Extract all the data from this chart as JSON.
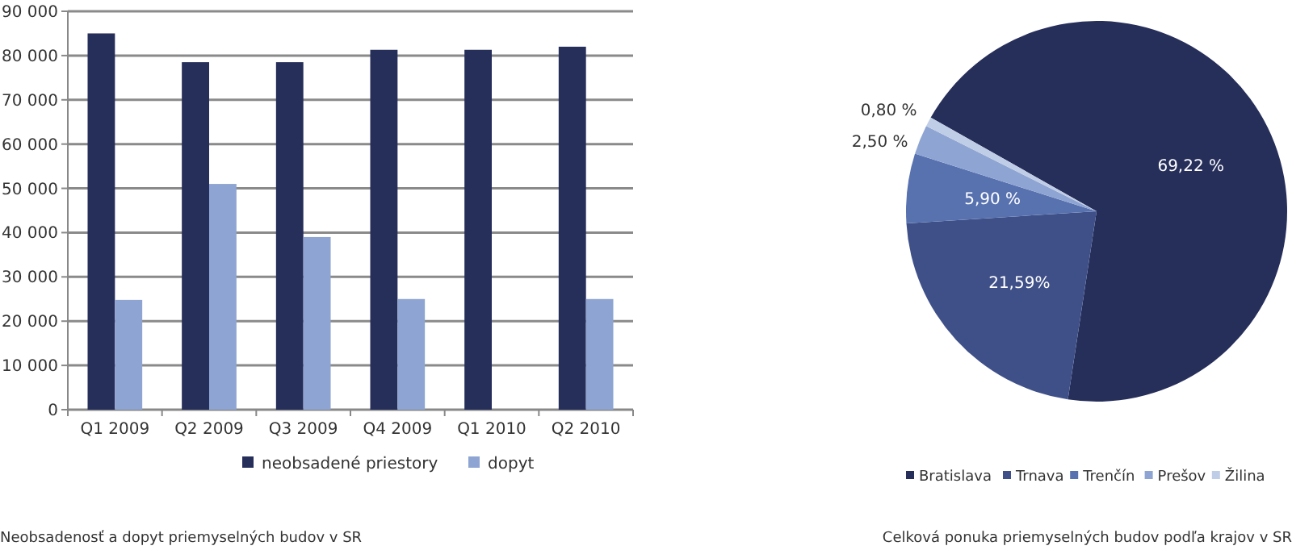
{
  "chart_data": [
    {
      "type": "bar",
      "categories": [
        "Q1 2009",
        "Q2 2009",
        "Q3 2009",
        "Q4 2009",
        "Q1 2010",
        "Q2 2010"
      ],
      "series": [
        {
          "name": "neobsadené priestory",
          "color": "#262e5a",
          "values": [
            85000,
            78500,
            78500,
            81300,
            81300,
            82000
          ]
        },
        {
          "name": "dopyt",
          "color": "#8ea4d2",
          "values": [
            24800,
            51000,
            39000,
            25000,
            null,
            25000
          ]
        }
      ],
      "ylim": [
        0,
        90000
      ],
      "yticks": [
        {
          "value": 0,
          "label": "0"
        },
        {
          "value": 10000,
          "label": "10 000"
        },
        {
          "value": 20000,
          "label": "20 000"
        },
        {
          "value": 30000,
          "label": "30 000"
        },
        {
          "value": 40000,
          "label": "40 000"
        },
        {
          "value": 50000,
          "label": "50 000"
        },
        {
          "value": 60000,
          "label": "60 000"
        },
        {
          "value": 70000,
          "label": "70 000"
        },
        {
          "value": 80000,
          "label": "80 000"
        },
        {
          "value": 90000,
          "label": "90 000"
        }
      ],
      "grid": "y",
      "legend": "bottom",
      "annotations": [
        "Neobsadenosť a dopyt priemyselných budov v SR"
      ]
    },
    {
      "type": "pie",
      "categories": [
        "Bratislava",
        "Trnava",
        "Trenčín",
        "Prešov",
        "Žilina"
      ],
      "values": [
        69.22,
        21.59,
        5.9,
        2.5,
        0.8
      ],
      "colors": [
        "#262e5a",
        "#3f5089",
        "#5872b0",
        "#8ea4d2",
        "#c0cde6"
      ],
      "value_labels": [
        "69,22 %",
        "21,59%",
        "5,90 %",
        "2,50 %",
        "0,80 %"
      ],
      "legend": "bottom",
      "annotations": [
        "Celková ponuka priemyselných budov podľa krajov v SR"
      ]
    }
  ]
}
